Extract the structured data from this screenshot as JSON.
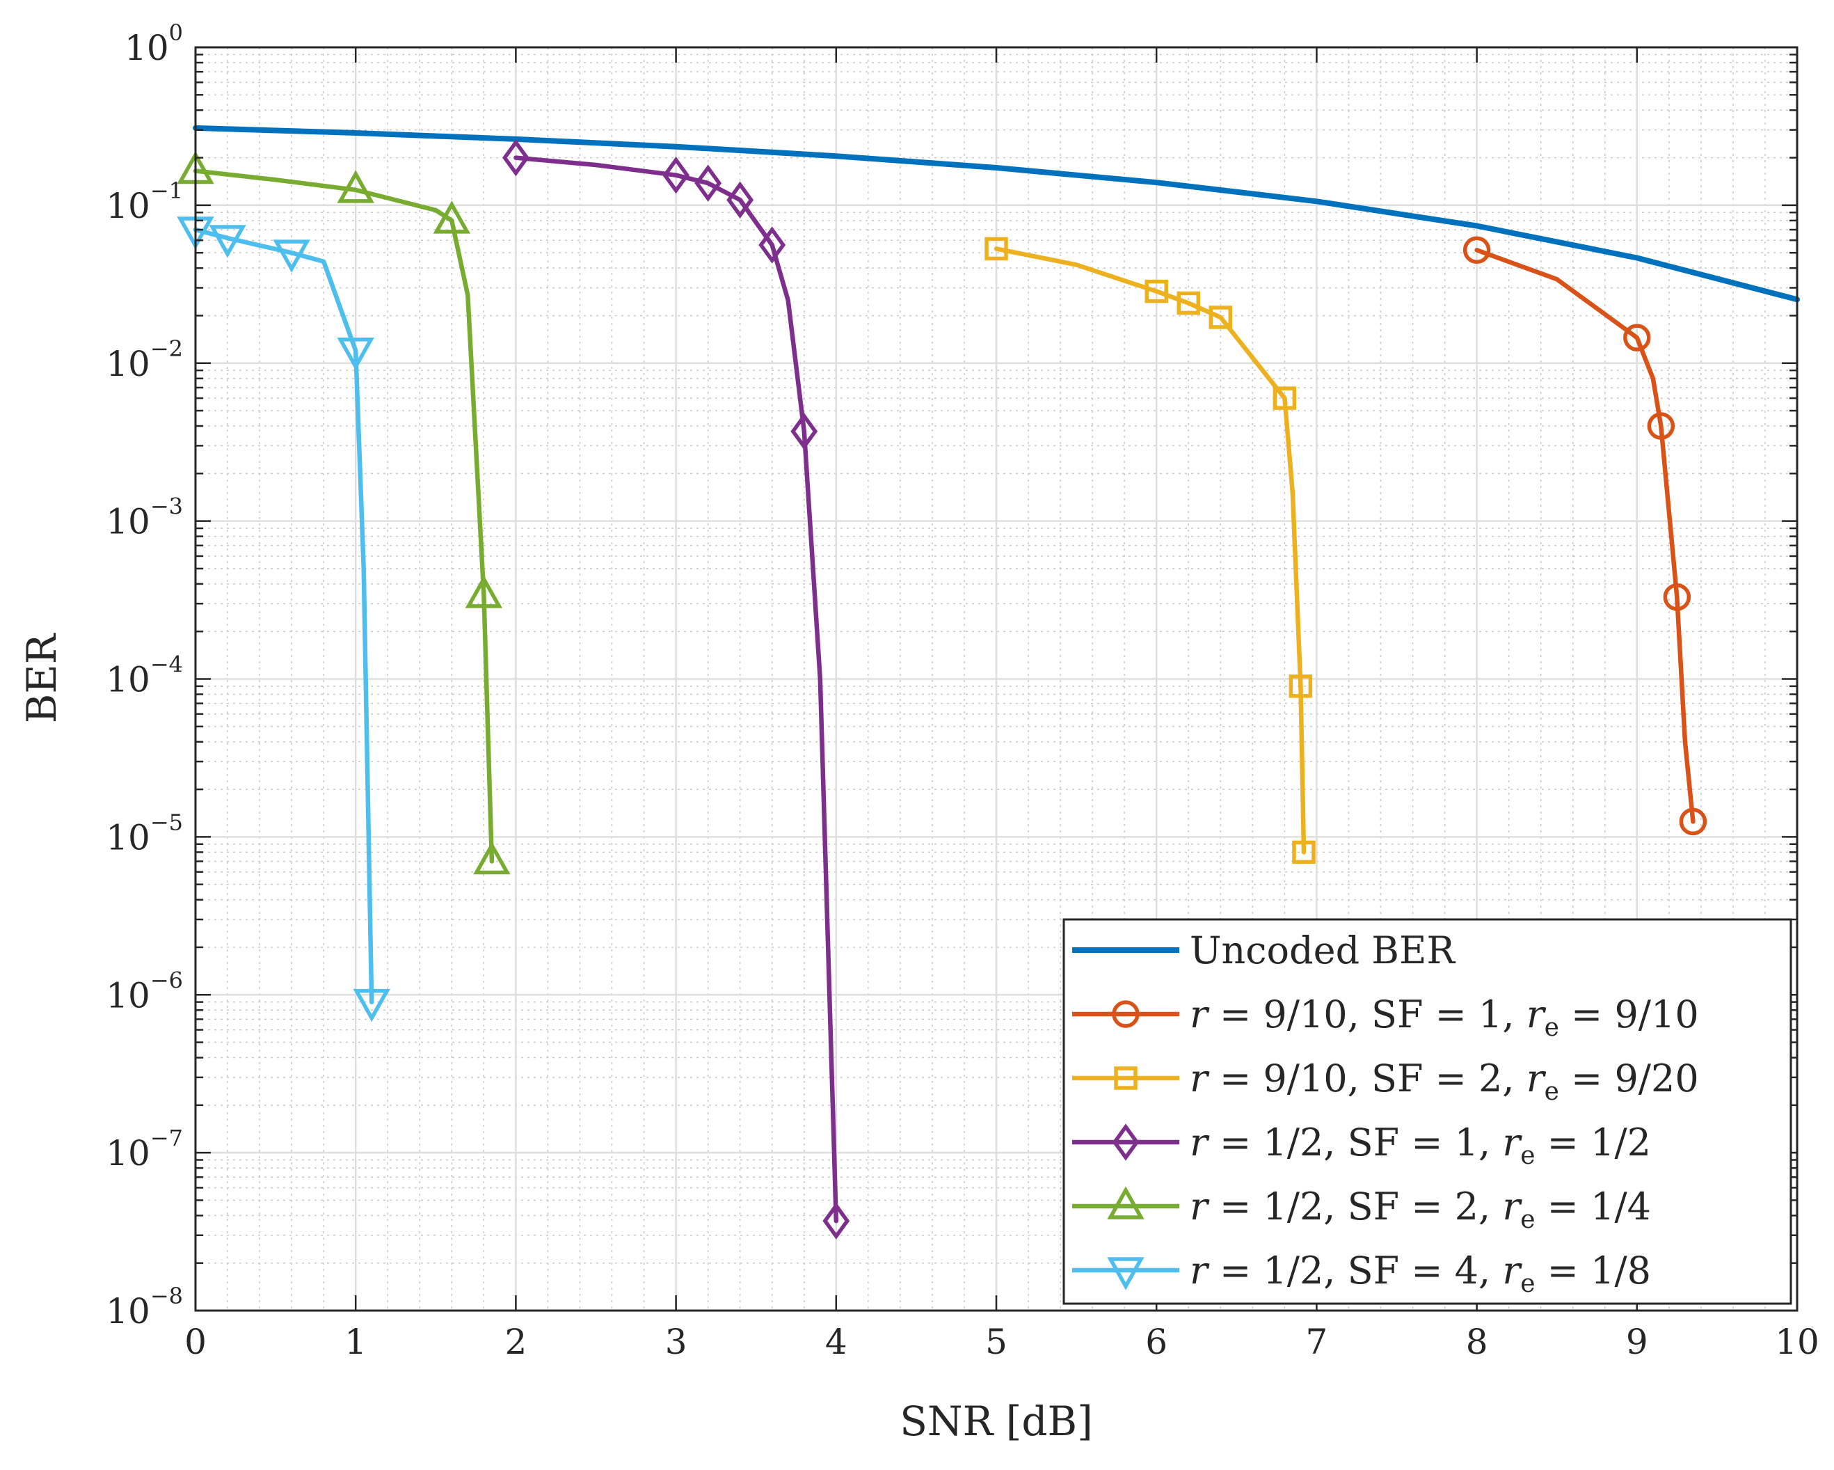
{
  "chart_data": {
    "type": "line",
    "xlabel": "SNR [dB]",
    "ylabel": "BER",
    "xscale": "linear",
    "yscale": "log",
    "xlim": [
      0,
      10
    ],
    "ylim": [
      1e-08,
      1
    ],
    "grid": true,
    "minor_grid": true,
    "legend_position": "bottom-right",
    "x_ticks": [
      0,
      1,
      2,
      3,
      4,
      5,
      6,
      7,
      8,
      9,
      10
    ],
    "x_tick_labels": [
      "0",
      "1",
      "2",
      "3",
      "4",
      "5",
      "6",
      "7",
      "8",
      "9",
      "10"
    ],
    "y_ticks": [
      1,
      0.1,
      0.01,
      0.001,
      0.0001,
      1e-05,
      1e-06,
      1e-07,
      1e-08
    ],
    "y_tick_labels": [
      {
        "base": "10",
        "exp": "0"
      },
      {
        "base": "10",
        "exp": "−1"
      },
      {
        "base": "10",
        "exp": "−2"
      },
      {
        "base": "10",
        "exp": "−3"
      },
      {
        "base": "10",
        "exp": "−4"
      },
      {
        "base": "10",
        "exp": "−5"
      },
      {
        "base": "10",
        "exp": "−6"
      },
      {
        "base": "10",
        "exp": "−7"
      },
      {
        "base": "10",
        "exp": "−8"
      }
    ],
    "series": [
      {
        "name": "Uncoded BER",
        "legend": [
          {
            "t": "Uncoded BER",
            "s": "plain"
          }
        ],
        "color": "#0072BD",
        "marker": "none",
        "x": [
          0,
          1,
          2,
          3,
          4,
          5,
          6,
          7,
          8,
          9,
          10
        ],
        "y": [
          0.3085,
          0.2869,
          0.2623,
          0.2349,
          0.2049,
          0.1728,
          0.1393,
          0.1058,
          0.074,
          0.0464,
          0.0253
        ]
      },
      {
        "name": "r = 9/10, SF = 1, r_e = 9/10",
        "legend": [
          {
            "t": "r",
            "s": "i"
          },
          {
            "t": " = 9/10, SF = 1, ",
            "s": "plain"
          },
          {
            "t": "r",
            "s": "i"
          },
          {
            "t": "e",
            "s": "sub"
          },
          {
            "t": " = 9/10",
            "s": "plain"
          }
        ],
        "color": "#D95319",
        "marker": "circle",
        "line_x": [
          8,
          8.5,
          9,
          9.1,
          9.15,
          9.25,
          9.3,
          9.35
        ],
        "line_y": [
          0.052,
          0.034,
          0.0145,
          0.008,
          0.004,
          0.00033,
          4e-05,
          1.25e-05
        ],
        "x": [
          8,
          9,
          9.15,
          9.25,
          9.35
        ],
        "y": [
          0.052,
          0.0145,
          0.004,
          0.00033,
          1.25e-05
        ]
      },
      {
        "name": "r = 9/10, SF = 2, r_e = 9/20",
        "legend": [
          {
            "t": "r",
            "s": "i"
          },
          {
            "t": " = 9/10, SF = 2, ",
            "s": "plain"
          },
          {
            "t": "r",
            "s": "i"
          },
          {
            "t": "e",
            "s": "sub"
          },
          {
            "t": " = 9/20",
            "s": "plain"
          }
        ],
        "color": "#EDB120",
        "marker": "square",
        "line_x": [
          5,
          5.5,
          6,
          6.2,
          6.4,
          6.8,
          6.85,
          6.9,
          6.92
        ],
        "line_y": [
          0.053,
          0.042,
          0.0285,
          0.024,
          0.0195,
          0.006,
          0.0015,
          9e-05,
          8e-06
        ],
        "x": [
          5,
          6,
          6.2,
          6.4,
          6.8,
          6.9,
          6.92
        ],
        "y": [
          0.053,
          0.0285,
          0.024,
          0.0195,
          0.006,
          9e-05,
          8e-06
        ]
      },
      {
        "name": "r = 1/2, SF = 1, r_e = 1/2",
        "legend": [
          {
            "t": "r",
            "s": "i"
          },
          {
            "t": " = 1/2, SF = 1, ",
            "s": "plain"
          },
          {
            "t": "r",
            "s": "i"
          },
          {
            "t": "e",
            "s": "sub"
          },
          {
            "t": " = 1/2",
            "s": "plain"
          }
        ],
        "color": "#7E2F8E",
        "marker": "diamond",
        "line_x": [
          2,
          2.5,
          3,
          3.2,
          3.4,
          3.6,
          3.7,
          3.8,
          3.9,
          4
        ],
        "line_y": [
          0.2,
          0.18,
          0.155,
          0.138,
          0.108,
          0.056,
          0.025,
          0.0037,
          0.0001,
          3.7e-08
        ],
        "x": [
          2,
          3,
          3.2,
          3.4,
          3.6,
          3.8,
          4
        ],
        "y": [
          0.2,
          0.155,
          0.138,
          0.108,
          0.056,
          0.0037,
          3.7e-08
        ]
      },
      {
        "name": "r = 1/2, SF = 2, r_e = 1/4",
        "legend": [
          {
            "t": "r",
            "s": "i"
          },
          {
            "t": " = 1/2, SF = 2, ",
            "s": "plain"
          },
          {
            "t": "r",
            "s": "i"
          },
          {
            "t": "e",
            "s": "sub"
          },
          {
            "t": " = 1/4",
            "s": "plain"
          }
        ],
        "color": "#77AC30",
        "marker": "triangle-up",
        "line_x": [
          0,
          0.5,
          1,
          1.5,
          1.6,
          1.7,
          1.8,
          1.85
        ],
        "line_y": [
          0.165,
          0.145,
          0.125,
          0.093,
          0.08,
          0.027,
          0.00034,
          7e-06
        ],
        "x": [
          0,
          1,
          1.6,
          1.8,
          1.85
        ],
        "y": [
          0.165,
          0.125,
          0.08,
          0.00034,
          7e-06
        ]
      },
      {
        "name": "r = 1/2, SF = 4, r_e = 1/8",
        "legend": [
          {
            "t": "r",
            "s": "i"
          },
          {
            "t": " = 1/2, SF = 4, ",
            "s": "plain"
          },
          {
            "t": "r",
            "s": "i"
          },
          {
            "t": "e",
            "s": "sub"
          },
          {
            "t": " = 1/8",
            "s": "plain"
          }
        ],
        "color": "#4DBEEE",
        "marker": "triangle-down",
        "line_x": [
          0,
          0.2,
          0.6,
          0.8,
          1,
          1.05,
          1.1
        ],
        "line_y": [
          0.07,
          0.062,
          0.05,
          0.044,
          0.012,
          0.0005,
          9e-07
        ],
        "x": [
          0,
          0.2,
          0.6,
          1,
          1.1
        ],
        "y": [
          0.07,
          0.062,
          0.05,
          0.012,
          9e-07
        ]
      }
    ]
  }
}
